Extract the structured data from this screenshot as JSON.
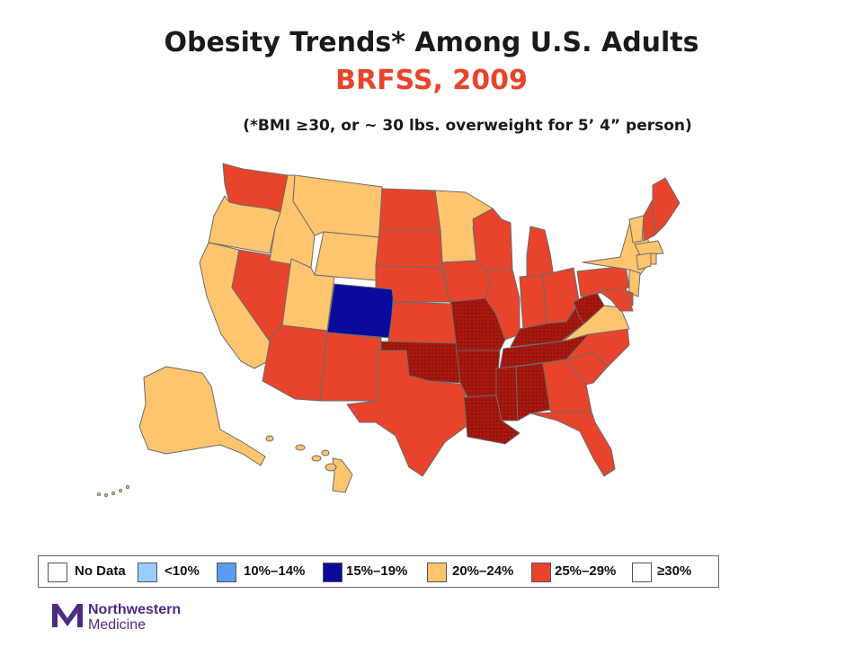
{
  "header": {
    "title": "Obesity Trends* Among U.S. Adults",
    "subtitle": "BRFSS, 2009",
    "note": "(*BMI ≥30, or ~ 30 lbs. overweight for 5’ 4” person)"
  },
  "legend": {
    "items": [
      {
        "label": "No Data",
        "color": "#ffffff"
      },
      {
        "label": "<10%",
        "color": "#99ccff"
      },
      {
        "label": "10%–14%",
        "color": "#5b9bf0"
      },
      {
        "label": "15%–19%",
        "color": "#0a0a9c"
      },
      {
        "label": "20%–24%",
        "color": "#ffc46e"
      },
      {
        "label": "25%–29%",
        "color": "#e8442c"
      },
      {
        "label": "≥30%",
        "color": "#a8180e"
      }
    ]
  },
  "map_data": {
    "year": 2009,
    "states": [
      {
        "state": "WA",
        "category": "25%–29%"
      },
      {
        "state": "OR",
        "category": "20%–24%"
      },
      {
        "state": "CA",
        "category": "20%–24%"
      },
      {
        "state": "NV",
        "category": "25%–29%"
      },
      {
        "state": "ID",
        "category": "20%–24%"
      },
      {
        "state": "MT",
        "category": "20%–24%"
      },
      {
        "state": "WY",
        "category": "20%–24%"
      },
      {
        "state": "UT",
        "category": "20%–24%"
      },
      {
        "state": "CO",
        "category": "15%–19%"
      },
      {
        "state": "AZ",
        "category": "25%–29%"
      },
      {
        "state": "NM",
        "category": "25%–29%"
      },
      {
        "state": "ND",
        "category": "25%–29%"
      },
      {
        "state": "SD",
        "category": "25%–29%"
      },
      {
        "state": "NE",
        "category": "25%–29%"
      },
      {
        "state": "KS",
        "category": "25%–29%"
      },
      {
        "state": "OK",
        "category": "≥30%"
      },
      {
        "state": "TX",
        "category": "25%–29%"
      },
      {
        "state": "MN",
        "category": "20%–24%"
      },
      {
        "state": "IA",
        "category": "25%–29%"
      },
      {
        "state": "MO",
        "category": "≥30%"
      },
      {
        "state": "AR",
        "category": "≥30%"
      },
      {
        "state": "LA",
        "category": "≥30%"
      },
      {
        "state": "WI",
        "category": "25%–29%"
      },
      {
        "state": "IL",
        "category": "25%–29%"
      },
      {
        "state": "MI",
        "category": "25%–29%"
      },
      {
        "state": "IN",
        "category": "25%–29%"
      },
      {
        "state": "OH",
        "category": "25%–29%"
      },
      {
        "state": "KY",
        "category": "≥30%"
      },
      {
        "state": "TN",
        "category": "≥30%"
      },
      {
        "state": "MS",
        "category": "≥30%"
      },
      {
        "state": "AL",
        "category": "≥30%"
      },
      {
        "state": "GA",
        "category": "25%–29%"
      },
      {
        "state": "FL",
        "category": "25%–29%"
      },
      {
        "state": "SC",
        "category": "25%–29%"
      },
      {
        "state": "NC",
        "category": "25%–29%"
      },
      {
        "state": "VA",
        "category": "20%–24%"
      },
      {
        "state": "WV",
        "category": "≥30%"
      },
      {
        "state": "PA",
        "category": "25%–29%"
      },
      {
        "state": "NY",
        "category": "20%–24%"
      },
      {
        "state": "VT",
        "category": "20%–24%"
      },
      {
        "state": "NH",
        "category": "25%–29%"
      },
      {
        "state": "ME",
        "category": "25%–29%"
      },
      {
        "state": "MA",
        "category": "20%–24%"
      },
      {
        "state": "CT",
        "category": "20%–24%"
      },
      {
        "state": "RI",
        "category": "20%–24%"
      },
      {
        "state": "NJ",
        "category": "20%–24%"
      },
      {
        "state": "DE",
        "category": "25%–29%"
      },
      {
        "state": "MD",
        "category": "25%–29%"
      },
      {
        "state": "AK",
        "category": "20%–24%"
      },
      {
        "state": "HI",
        "category": "20%–24%"
      }
    ]
  },
  "logo": {
    "line1": "Northwestern",
    "line2": "Medicine",
    "brand_color": "#4e2a84"
  }
}
